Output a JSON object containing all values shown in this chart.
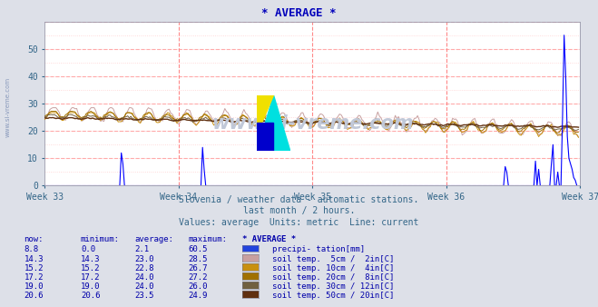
{
  "title": "* AVERAGE *",
  "subtitle1": "Slovenia / weather data - automatic stations.",
  "subtitle2": "last month / 2 hours.",
  "subtitle3": "Values: average  Units: metric  Line: current",
  "bg_color": "#dde0e8",
  "plot_bg_color": "#ffffff",
  "title_color": "#0000bb",
  "subtitle_color": "#336688",
  "text_color": "#0000aa",
  "axis_color": "#336688",
  "grid_major_color": "#ffaaaa",
  "grid_minor_color": "#ffd0d0",
  "vline_color": "#ff8888",
  "watermark_text": "www.si-vreme.com",
  "watermark_color": "#c0c8d8",
  "side_text": "www.si-vreme.com",
  "side_text_color": "#8899bb",
  "xlabels": [
    "Week 33",
    "Week 34",
    "Week 35",
    "Week 36",
    "Week 37"
  ],
  "xlabels_x": [
    0,
    84,
    168,
    252,
    336
  ],
  "ylim": [
    0,
    60
  ],
  "yticks": [
    0,
    10,
    20,
    30,
    40,
    50
  ],
  "n_points": 336,
  "series_colors": [
    "#0000ff",
    "#c8a0a0",
    "#c89010",
    "#a07000",
    "#706040",
    "#603010"
  ],
  "legend_colors": [
    "#2244dd",
    "#c8a0a0",
    "#c89010",
    "#a07000",
    "#706040",
    "#603010"
  ],
  "legend_rows": [
    {
      "now": "8.8",
      "min": "0.0",
      "avg": "2.1",
      "max": "60.5",
      "name": "precipi- tation[mm]"
    },
    {
      "now": "14.3",
      "min": "14.3",
      "avg": "23.0",
      "max": "28.5",
      "name": "soil temp.  5cm /  2in[C]"
    },
    {
      "now": "15.2",
      "min": "15.2",
      "avg": "22.8",
      "max": "26.7",
      "name": "soil temp. 10cm /  4in[C]"
    },
    {
      "now": "17.2",
      "min": "17.2",
      "avg": "24.0",
      "max": "27.2",
      "name": "soil temp. 20cm /  8in[C]"
    },
    {
      "now": "19.0",
      "min": "19.0",
      "avg": "24.0",
      "max": "26.0",
      "name": "soil temp. 30cm / 12in[C]"
    },
    {
      "now": "20.6",
      "min": "20.6",
      "avg": "23.5",
      "max": "24.9",
      "name": "soil temp. 50cm / 20in[C]"
    }
  ],
  "logo_yellow": "#f0e000",
  "logo_cyan": "#00e0e0",
  "logo_blue": "#0000cc"
}
